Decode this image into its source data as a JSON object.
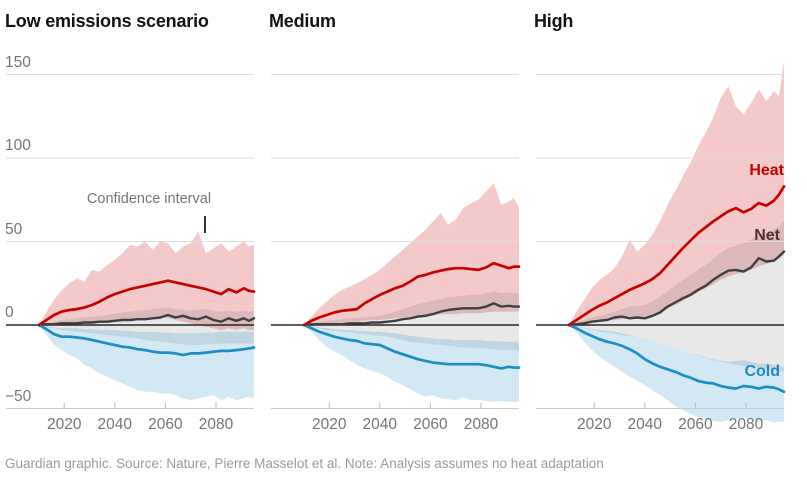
{
  "header": {
    "panel_titles": [
      "Low emissions scenario",
      "Medium",
      "High"
    ]
  },
  "annotation": {
    "label": "Confidence interval"
  },
  "series_labels": {
    "heat": "Heat",
    "net": "Net",
    "cold": "Cold"
  },
  "caption": "Guardian graphic. Source: Nature, Pierre Masselot et al. Note: Analysis assumes no heat adaptation",
  "colors": {
    "heat_line": "#c70000",
    "net_line": "#3f3f3f",
    "cold_line": "#1d8dc6",
    "grid": "#dcdcdc",
    "zero_axis": "#262626",
    "tick_text": "#767676",
    "caption_text": "#9b9b9b"
  },
  "chart_data": [
    {
      "title": "Low emissions scenario",
      "type": "line",
      "legend_position": "none",
      "grid": "horizontal",
      "x": [
        2010,
        2013,
        2016,
        2019,
        2022,
        2025,
        2028,
        2031,
        2034,
        2037,
        2040,
        2043,
        2046,
        2049,
        2052,
        2055,
        2058,
        2061,
        2064,
        2067,
        2070,
        2073,
        2076,
        2079,
        2082,
        2085,
        2088,
        2091,
        2093,
        2095
      ],
      "xticks": [
        2020,
        2040,
        2060,
        2080
      ],
      "yticks": [
        {
          "v": 150,
          "label": "150"
        },
        {
          "v": 100,
          "label": "100"
        },
        {
          "v": 50,
          "label": "50"
        },
        {
          "v": 0,
          "label": "0"
        },
        {
          "v": -50,
          "label": "−50"
        }
      ],
      "xlim": [
        1997,
        2095
      ],
      "ylim": [
        -60,
        170
      ],
      "series": [
        {
          "name": "Heat",
          "color": "#c70000",
          "band_opacity": 0.21,
          "values": [
            0,
            3,
            6,
            8,
            9,
            9.5,
            10.5,
            12,
            14,
            16.5,
            18.5,
            20,
            21.5,
            22.5,
            23.5,
            24.5,
            25.5,
            26.5,
            25.5,
            24.5,
            23.5,
            22.5,
            21.5,
            20,
            18.5,
            21.5,
            19.5,
            22,
            20.5,
            20
          ],
          "ci_high": [
            0,
            8,
            15,
            21,
            25,
            28,
            26,
            33,
            32,
            36,
            39,
            43,
            48,
            47,
            50,
            45,
            50,
            49,
            43,
            47,
            49,
            56,
            43,
            46,
            49,
            44,
            47,
            50,
            47,
            48
          ],
          "ci_low": [
            0,
            0.5,
            1,
            1,
            1,
            1,
            1.5,
            1.5,
            2,
            2.5,
            3,
            3,
            3.5,
            4,
            4,
            4.5,
            5,
            4,
            3,
            2,
            1,
            0,
            -1,
            -2,
            -3,
            -2,
            -3,
            -2,
            -3,
            -3
          ]
        },
        {
          "name": "Net",
          "color": "#3f3f3f",
          "band_opacity": 0.12,
          "values": [
            0,
            0.5,
            0.5,
            1,
            1,
            1,
            1.5,
            1.5,
            2,
            2,
            2.5,
            3,
            3,
            3.5,
            3.5,
            4,
            4.5,
            6,
            4.5,
            5.5,
            4,
            3.5,
            5,
            3,
            2,
            4,
            2.5,
            4,
            2.5,
            4
          ],
          "ci_high": [
            0,
            1,
            2,
            3,
            3.5,
            4,
            4.5,
            5,
            5.5,
            6,
            7,
            7.5,
            8,
            8.5,
            9,
            9.5,
            10,
            10.5,
            9.5,
            9,
            8.5,
            9,
            9.5,
            8.5,
            8,
            8.5,
            8,
            8.5,
            8,
            8.5
          ],
          "ci_low": [
            0,
            -1,
            -2,
            -3,
            -3.5,
            -4,
            -4.5,
            -5,
            -5.5,
            -6,
            -6.5,
            -7,
            -7.5,
            -8,
            -9,
            -9.5,
            -10,
            -10.5,
            -11,
            -11.5,
            -12,
            -12,
            -11.5,
            -11.5,
            -11,
            -11,
            -11,
            -11,
            -11,
            -11
          ]
        },
        {
          "name": "Cold",
          "color": "#1d8dc6",
          "band_opacity": 0.2,
          "values": [
            0,
            -2.5,
            -5.5,
            -7,
            -7,
            -7.5,
            -8,
            -9,
            -10,
            -11,
            -12,
            -13,
            -13.5,
            -14.5,
            -15,
            -16,
            -16.5,
            -16.5,
            -17,
            -18,
            -17,
            -17,
            -16.5,
            -16,
            -15.5,
            -15.5,
            -15,
            -14.5,
            -14,
            -13.5
          ],
          "ci_high": [
            0,
            -0.5,
            -1.5,
            -2,
            -2,
            -2,
            -2.5,
            -2.5,
            -3,
            -3,
            -3,
            -3.5,
            -3.5,
            -4,
            -4,
            -4,
            -4.5,
            -4.5,
            -5,
            -5,
            -5,
            -5,
            -4.5,
            -4.5,
            -4,
            -4,
            -4,
            -4,
            -4,
            -4
          ],
          "ci_low": [
            0,
            -6,
            -12,
            -15,
            -18,
            -20,
            -24,
            -26,
            -29,
            -31,
            -33,
            -35,
            -37,
            -39,
            -40,
            -40,
            -41,
            -41,
            -42,
            -44,
            -45,
            -44,
            -43,
            -42,
            -45,
            -43,
            -45,
            -44,
            -43,
            -44
          ]
        }
      ]
    },
    {
      "title": "Medium",
      "type": "line",
      "legend_position": "none",
      "grid": "horizontal",
      "x": [
        2010,
        2013,
        2016,
        2019,
        2022,
        2025,
        2028,
        2031,
        2034,
        2037,
        2040,
        2043,
        2046,
        2049,
        2052,
        2055,
        2058,
        2061,
        2064,
        2067,
        2070,
        2073,
        2076,
        2079,
        2082,
        2085,
        2088,
        2091,
        2093,
        2095
      ],
      "xticks": [
        2020,
        2040,
        2060,
        2080
      ],
      "yticks": [
        {
          "v": 150,
          "label": "150"
        },
        {
          "v": 100,
          "label": "100"
        },
        {
          "v": 50,
          "label": "50"
        },
        {
          "v": 0,
          "label": "0"
        },
        {
          "v": -50,
          "label": "−50"
        }
      ],
      "xlim": [
        1997,
        2095
      ],
      "ylim": [
        -60,
        170
      ],
      "series": [
        {
          "name": "Heat",
          "color": "#c70000",
          "band_opacity": 0.21,
          "values": [
            0,
            2.5,
            4.5,
            6,
            7.5,
            8.5,
            9,
            9.5,
            13,
            15.5,
            18,
            20,
            22,
            23.5,
            26,
            29,
            30,
            31.5,
            32.5,
            33.5,
            34,
            34,
            33.5,
            33,
            34.5,
            37,
            35.5,
            34,
            35,
            35
          ],
          "ci_high": [
            0,
            5,
            10,
            14,
            18,
            21,
            23,
            25,
            27.5,
            30,
            33,
            37,
            41,
            45,
            49,
            53,
            57,
            62,
            67,
            60,
            63,
            70,
            73,
            75,
            80,
            85,
            72,
            74,
            76,
            70
          ],
          "ci_low": [
            0,
            0,
            0.5,
            1,
            1,
            1.5,
            2,
            2,
            2.5,
            3,
            3,
            3.5,
            4,
            4.5,
            5,
            5.5,
            6,
            6,
            6.5,
            6.5,
            6.5,
            7,
            7,
            7,
            7.5,
            8,
            8,
            8,
            8,
            8
          ]
        },
        {
          "name": "Net",
          "color": "#3f3f3f",
          "band_opacity": 0.12,
          "values": [
            0,
            0.3,
            0.5,
            0.5,
            0.5,
            0.5,
            1,
            1,
            1,
            1.5,
            1.5,
            2,
            2.5,
            3.5,
            4,
            5,
            5.5,
            6.5,
            8,
            9,
            9.5,
            10,
            10,
            10,
            11,
            13,
            11,
            11.5,
            11,
            11
          ],
          "ci_high": [
            0,
            1,
            2,
            2.5,
            3,
            3.5,
            4,
            4,
            4.5,
            5,
            5.5,
            6.5,
            8,
            9.5,
            11,
            12.5,
            13.5,
            14.5,
            15.5,
            16.5,
            17,
            17.5,
            18,
            18,
            19,
            20,
            19,
            19.5,
            19,
            19
          ],
          "ci_low": [
            0,
            -1,
            -2,
            -3,
            -3.5,
            -4,
            -4.5,
            -5,
            -5.5,
            -6,
            -6.5,
            -7,
            -8,
            -9,
            -10,
            -10.5,
            -11,
            -11.5,
            -12,
            -12.5,
            -13,
            -13.5,
            -13.5,
            -14,
            -14,
            -14.5,
            -15,
            -15,
            -15,
            -15
          ]
        },
        {
          "name": "Cold",
          "color": "#1d8dc6",
          "band_opacity": 0.2,
          "values": [
            0,
            -2,
            -4,
            -5.5,
            -7,
            -8,
            -9,
            -9.5,
            -11,
            -11.5,
            -12,
            -14,
            -16,
            -17.5,
            -19,
            -20.5,
            -21.5,
            -22.5,
            -23,
            -23.5,
            -23.5,
            -23.5,
            -23.5,
            -23.5,
            -24,
            -25,
            -26,
            -25,
            -25.5,
            -25.5
          ],
          "ci_high": [
            0,
            -0.5,
            -1.5,
            -2,
            -2.5,
            -3,
            -3,
            -3.5,
            -3.5,
            -4,
            -4,
            -4.5,
            -5,
            -5.5,
            -6.5,
            -7,
            -7.5,
            -8,
            -8.5,
            -8.5,
            -9,
            -9,
            -9,
            -9,
            -9.5,
            -9.5,
            -10,
            -10,
            -10,
            -10
          ],
          "ci_low": [
            0,
            -4,
            -9,
            -13,
            -16,
            -18,
            -21,
            -24,
            -26,
            -27.5,
            -29,
            -31,
            -34,
            -36,
            -38.5,
            -41,
            -43,
            -42,
            -44,
            -44.5,
            -45,
            -43.5,
            -45,
            -45,
            -45.5,
            -46,
            -45.5,
            -46,
            -46,
            -46
          ]
        }
      ]
    },
    {
      "title": "High",
      "type": "line",
      "legend_position": "inline-right",
      "grid": "horizontal",
      "x": [
        2010,
        2013,
        2016,
        2019,
        2022,
        2025,
        2028,
        2031,
        2034,
        2037,
        2040,
        2043,
        2046,
        2049,
        2052,
        2055,
        2058,
        2061,
        2064,
        2067,
        2070,
        2073,
        2076,
        2079,
        2082,
        2085,
        2088,
        2091,
        2093,
        2095
      ],
      "xticks": [
        2020,
        2040,
        2060,
        2080
      ],
      "yticks": [
        {
          "v": 150,
          "label": "150"
        },
        {
          "v": 100,
          "label": "100"
        },
        {
          "v": 50,
          "label": "50"
        },
        {
          "v": 0,
          "label": "0"
        },
        {
          "v": -50,
          "label": "−50"
        }
      ],
      "xlim": [
        1997,
        2095
      ],
      "ylim": [
        -60,
        170
      ],
      "series": [
        {
          "name": "Heat",
          "color": "#c70000",
          "band_opacity": 0.21,
          "values": [
            0,
            3,
            6,
            9,
            11.5,
            13.5,
            16,
            18.5,
            21,
            23,
            25,
            27.5,
            31,
            36,
            41,
            46,
            50.5,
            55,
            58.5,
            62,
            65,
            68,
            70,
            67.5,
            69.5,
            73,
            71.5,
            74.5,
            78,
            83
          ],
          "ci_high": [
            0,
            8,
            15,
            22,
            27,
            30,
            34,
            41,
            51,
            44,
            48,
            54,
            62,
            72,
            80,
            89,
            97,
            107,
            115,
            124,
            136,
            143,
            131,
            126,
            133,
            141,
            134,
            140,
            137,
            158
          ],
          "ci_low": [
            0,
            0.5,
            1,
            1.5,
            2,
            2.5,
            3,
            3.5,
            4,
            4.5,
            5,
            6.5,
            8,
            10,
            12,
            14.5,
            17,
            19.5,
            22,
            24.5,
            27,
            29,
            30.5,
            31.5,
            33,
            35,
            36.5,
            38,
            40,
            42
          ]
        },
        {
          "name": "Net",
          "color": "#3f3f3f",
          "band_opacity": 0.12,
          "values": [
            0,
            0.5,
            1,
            2,
            2.5,
            3,
            4.5,
            5,
            4,
            4.5,
            4,
            5.5,
            7.5,
            11,
            13.5,
            16,
            18,
            21,
            23.5,
            27,
            30,
            32.5,
            33,
            32,
            34.5,
            40,
            38,
            38.5,
            41,
            44
          ],
          "ci_high": [
            0,
            1.5,
            3,
            4.5,
            5.5,
            6.5,
            8,
            9.5,
            11,
            11.5,
            12,
            14,
            17,
            20,
            23.5,
            27,
            30,
            33,
            36,
            39.5,
            43,
            46,
            47.5,
            49,
            51,
            54,
            55,
            57,
            59,
            62
          ],
          "ci_low": [
            0,
            -1,
            -2,
            -3,
            -4,
            -4.5,
            -5,
            -6,
            -6.5,
            -7,
            -8,
            -9.5,
            -11,
            -12.5,
            -14,
            -15.5,
            -17,
            -18.5,
            -20,
            -21,
            -22,
            -23,
            -24,
            -24.5,
            -25,
            -26,
            -26.5,
            -27,
            -27.5,
            -28
          ]
        },
        {
          "name": "Cold",
          "color": "#1d8dc6",
          "band_opacity": 0.2,
          "values": [
            0,
            -2,
            -4.5,
            -6.5,
            -8.5,
            -10,
            -11,
            -12.5,
            -14.5,
            -17,
            -20.5,
            -23,
            -25,
            -26.5,
            -28,
            -30,
            -31.5,
            -33.5,
            -34.5,
            -35,
            -36.5,
            -37.5,
            -38,
            -36.5,
            -37,
            -38,
            -37,
            -37.5,
            -38.5,
            -40
          ],
          "ci_high": [
            0,
            -0.5,
            -1.5,
            -2.5,
            -3,
            -3.5,
            -4,
            -5,
            -6,
            -7,
            -8,
            -9.5,
            -11,
            -12.5,
            -14,
            -15.5,
            -17,
            -18,
            -19.5,
            -20.5,
            -21.5,
            -22,
            -21.5,
            -21,
            -22,
            -23.5,
            -23,
            -24,
            -24.5,
            -25
          ],
          "ci_low": [
            0,
            -4.5,
            -10,
            -15,
            -19,
            -22,
            -25,
            -28,
            -31,
            -33.5,
            -36,
            -39,
            -42,
            -45,
            -48.5,
            -51,
            -53.5,
            -55,
            -56,
            -57.5,
            -58,
            -57,
            -56.5,
            -55,
            -56.5,
            -58,
            -57,
            -58.5,
            -58,
            -58
          ]
        }
      ]
    }
  ]
}
